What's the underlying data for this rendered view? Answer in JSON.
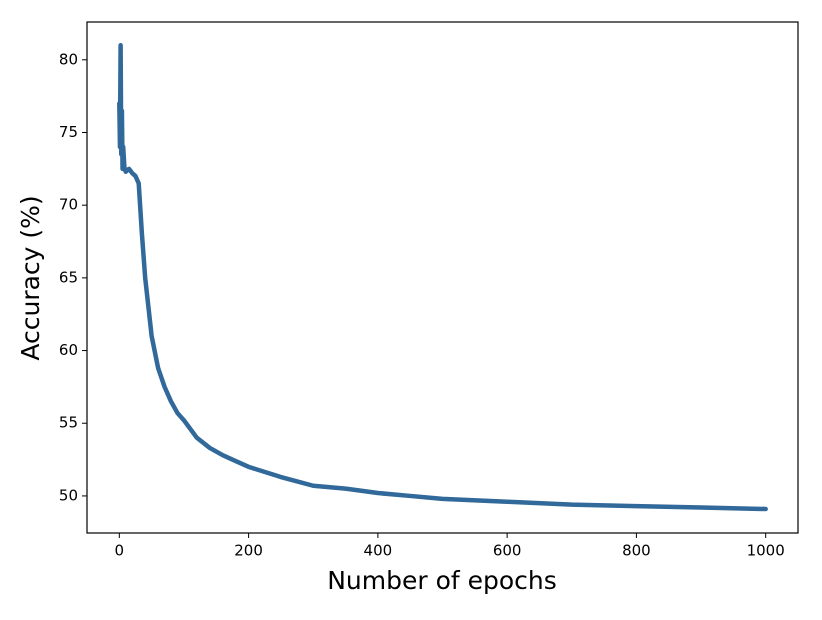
{
  "chart_data": {
    "type": "line",
    "x_label": "Number of epochs",
    "y_label": "Accuracy (%)",
    "x": [
      0,
      1,
      2,
      3,
      4,
      5,
      6,
      8,
      10,
      15,
      20,
      25,
      30,
      35,
      40,
      50,
      60,
      70,
      80,
      90,
      100,
      120,
      140,
      160,
      180,
      200,
      250,
      300,
      350,
      400,
      450,
      500,
      600,
      700,
      800,
      900,
      1000
    ],
    "series": [
      {
        "name": "Accuracy",
        "color": "#30699a",
        "values": [
          77,
          74,
          81,
          73.5,
          76.5,
          72.5,
          74,
          72.5,
          72.3,
          72.5,
          72.2,
          72,
          71.5,
          68,
          65,
          61,
          58.8,
          57.5,
          56.5,
          55.7,
          55.2,
          54,
          53.3,
          52.8,
          52.4,
          52,
          51.3,
          50.7,
          50.5,
          50.2,
          50,
          49.8,
          49.6,
          49.4,
          49.3,
          49.2,
          49.1
        ]
      }
    ],
    "xlim": [
      -50,
      1050
    ],
    "ylim": [
      47.45,
      82.6
    ],
    "xticks": [
      0,
      200,
      400,
      600,
      800,
      1000
    ],
    "yticks": [
      50,
      55,
      60,
      65,
      70,
      75,
      80
    ],
    "grid": false
  }
}
